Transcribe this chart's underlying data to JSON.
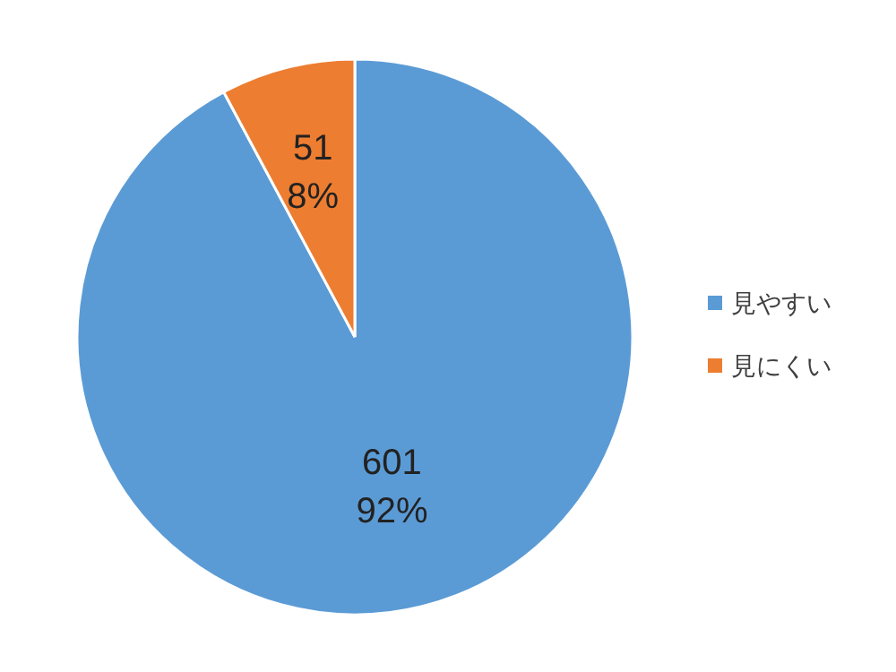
{
  "chart_data": {
    "type": "pie",
    "categories": [
      "見やすい",
      "見にくい"
    ],
    "values": [
      601,
      51
    ],
    "colors": [
      "#5b9bd5",
      "#ed7d31"
    ],
    "value_labels": [
      "601\n92%",
      "51\n8%"
    ],
    "legend": "right"
  }
}
